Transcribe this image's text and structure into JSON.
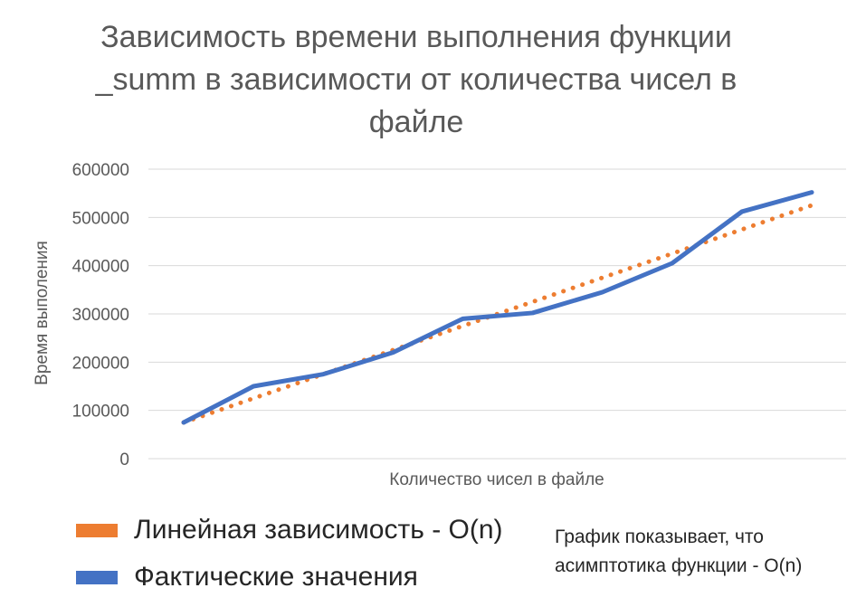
{
  "chart_data": {
    "type": "line",
    "title": "Зависимость времени выполнения функции _summ в зависимости от количества чисел в файле",
    "xlabel": "Количество чисел в файле",
    "ylabel": "Время выполения",
    "ylim": [
      0,
      600000
    ],
    "yticks": [
      "600000",
      "500000",
      "400000",
      "300000",
      "200000",
      "100000",
      "0"
    ],
    "grid": true,
    "legend_position": "bottom-left",
    "series": [
      {
        "name": "Фактические значения",
        "style": "solid",
        "color": "#4472C4",
        "values": [
          75000,
          150000,
          175000,
          220000,
          290000,
          302000,
          345000,
          405000,
          512000,
          552000
        ]
      },
      {
        "name": "Линейная зависимость - O(n)",
        "style": "dotted",
        "color": "#ED7D31",
        "values": [
          75000,
          125000,
          175000,
          225000,
          275000,
          325000,
          375000,
          425000,
          475000,
          525000
        ]
      }
    ],
    "legend": [
      {
        "label": "Линейная зависимость - O(n)",
        "color": "#ED7D31"
      },
      {
        "label": "Фактические значения",
        "color": "#4472C4"
      }
    ],
    "annotation": [
      "График показывает, что",
      "асимптотика функции - O(n)"
    ]
  }
}
